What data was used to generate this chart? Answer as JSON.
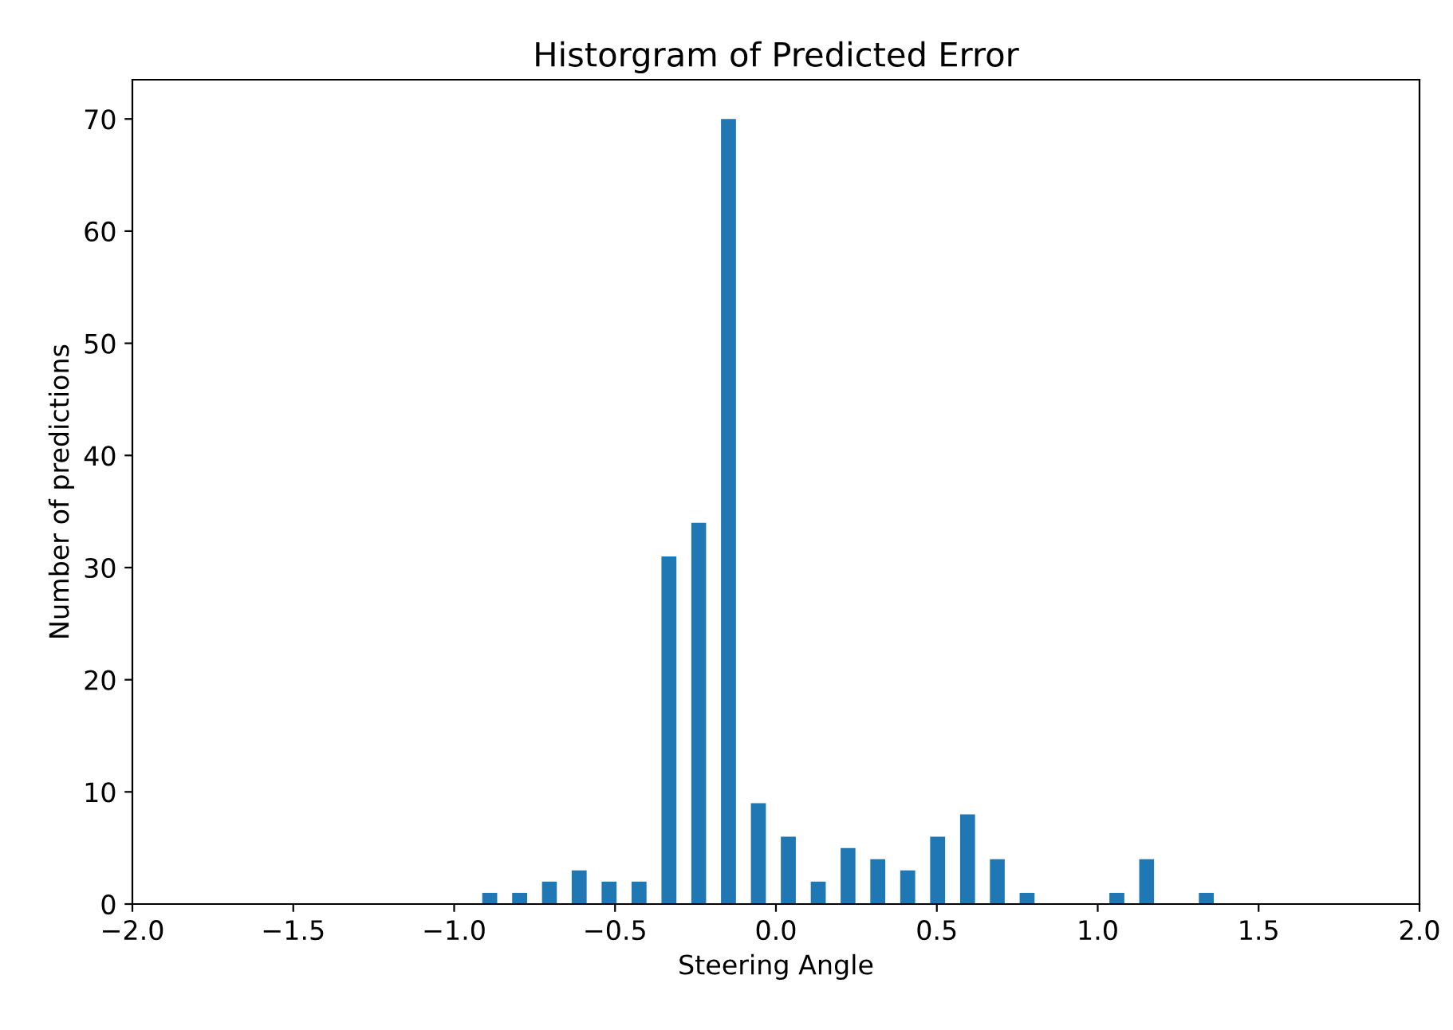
{
  "chart_data": {
    "type": "histogram",
    "title": "Historgram of Predicted Error",
    "xlabel": "Steering Angle",
    "ylabel": "Number of predictions",
    "bins": [
      -0.936,
      -0.843,
      -0.75,
      -0.658,
      -0.565,
      -0.472,
      -0.379,
      -0.286,
      -0.194,
      -0.101,
      -0.008,
      0.085,
      0.178,
      0.27,
      0.363,
      0.456,
      0.549,
      0.642,
      0.734,
      0.827,
      0.92,
      1.013,
      1.106,
      1.198,
      1.291,
      1.384
    ],
    "values": [
      1,
      1,
      2,
      3,
      2,
      2,
      31,
      34,
      70,
      9,
      6,
      2,
      5,
      4,
      3,
      6,
      8,
      4,
      1,
      0,
      0,
      1,
      4,
      0,
      1
    ],
    "color": "#1f77b4",
    "xlim": [
      -2.0,
      2.0
    ],
    "xticks": [
      {
        "value": -2.0,
        "label": "−2.0"
      },
      {
        "value": -1.5,
        "label": "−1.5"
      },
      {
        "value": -1.0,
        "label": "−1.0"
      },
      {
        "value": -0.5,
        "label": "−0.5"
      },
      {
        "value": 0.0,
        "label": "0.0"
      },
      {
        "value": 0.5,
        "label": "0.5"
      },
      {
        "value": 1.0,
        "label": "1.0"
      },
      {
        "value": 1.5,
        "label": "1.5"
      },
      {
        "value": 2.0,
        "label": "2.0"
      }
    ],
    "ylim": [
      0,
      73.5
    ],
    "yticks": [
      0,
      10,
      20,
      30,
      40,
      50,
      60,
      70
    ],
    "grid": false,
    "legend": false
  }
}
